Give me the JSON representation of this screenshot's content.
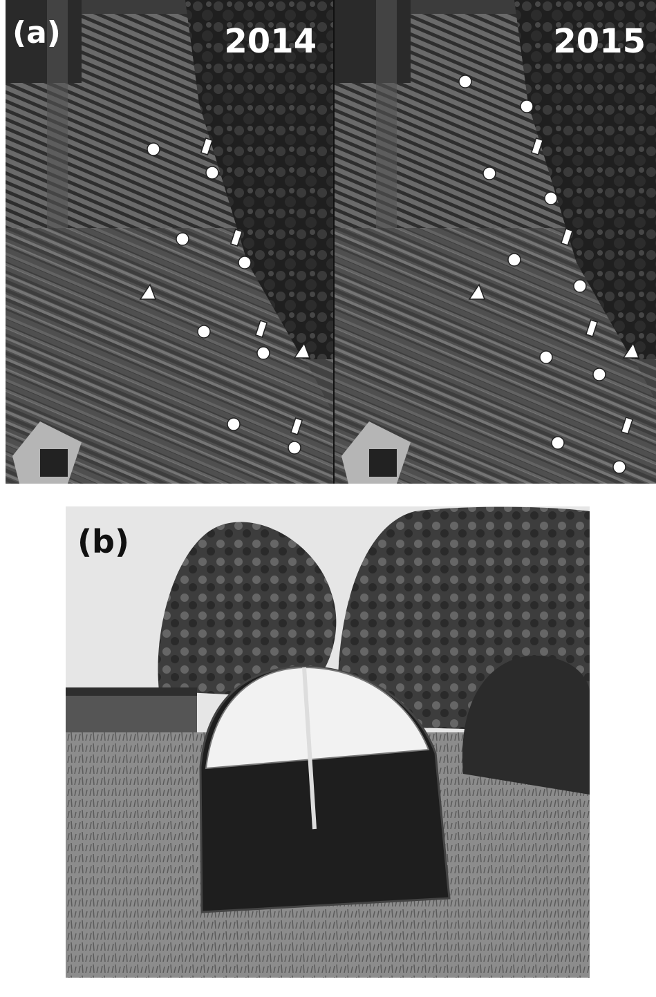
{
  "panel_a": {
    "label": "(a)",
    "left_year": "2014",
    "right_year": "2015"
  },
  "panel_b": {
    "label": "(b)"
  }
}
